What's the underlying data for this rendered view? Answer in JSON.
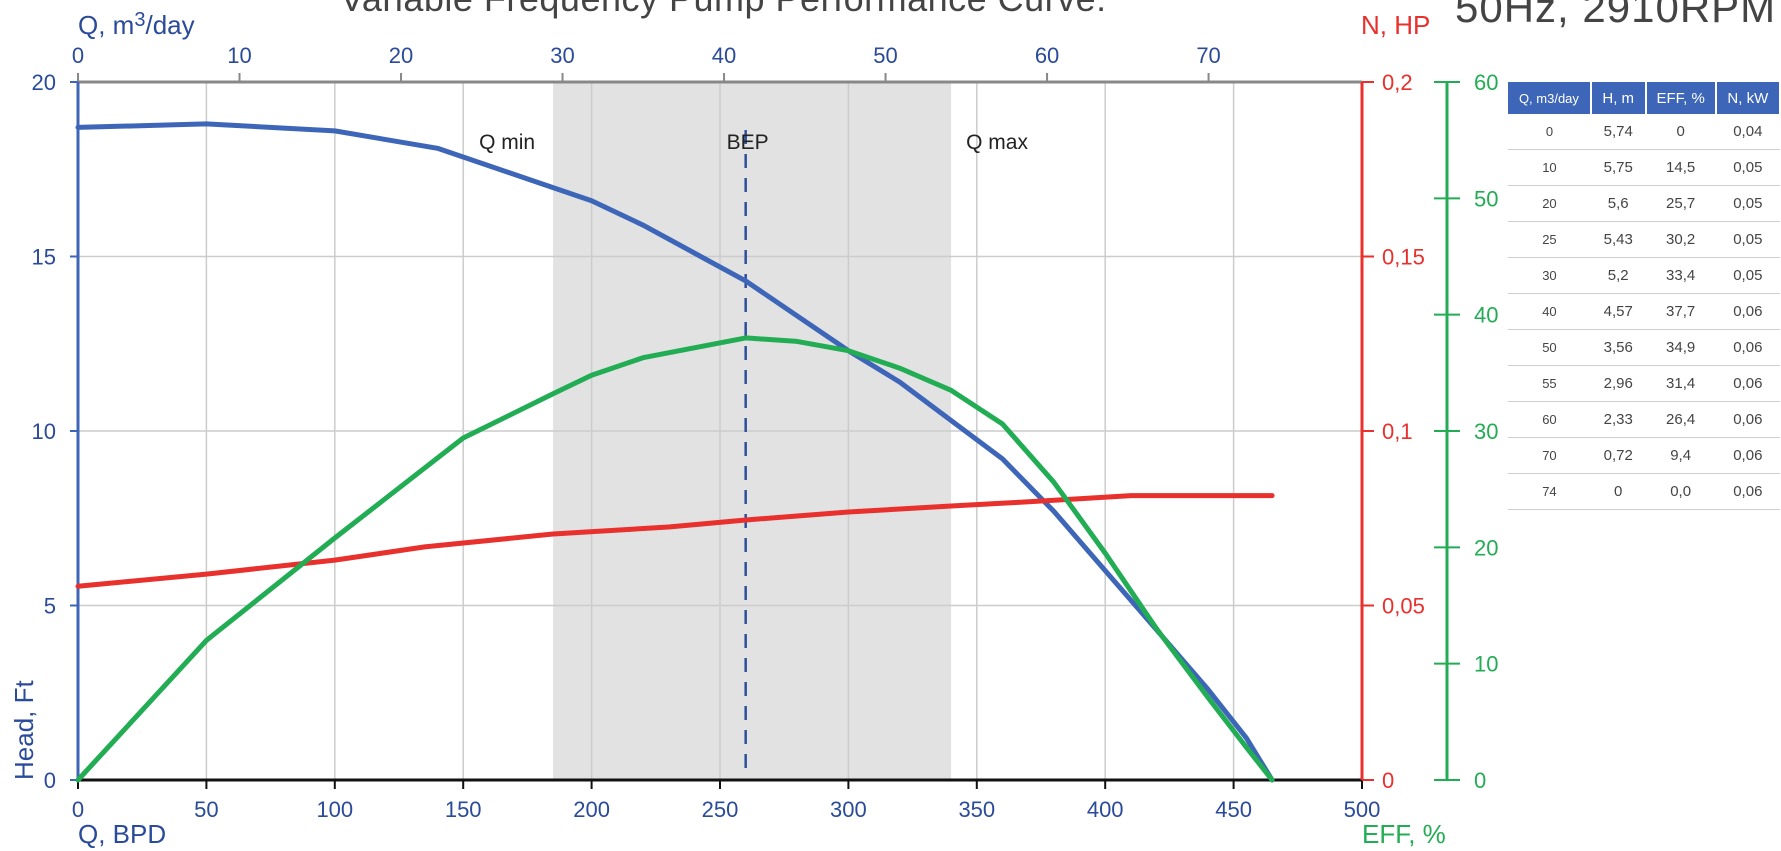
{
  "title": "Variable Frequency Pump Performance Curve:",
  "subtitle": "50Hz, 2910RPM",
  "chart_data": {
    "type": "line",
    "axes": {
      "x_bottom": {
        "label": "Q, BPD",
        "range": [
          0,
          500
        ],
        "ticks": [
          0,
          50,
          100,
          150,
          200,
          250,
          300,
          350,
          400,
          450,
          500
        ]
      },
      "x_top": {
        "label": "Q, m3/day",
        "range": [
          0,
          79.5
        ],
        "ticks": [
          0,
          10,
          20,
          30,
          40,
          50,
          60,
          70
        ]
      },
      "y_left": {
        "label": "Head, Ft",
        "range": [
          0,
          20
        ],
        "ticks": [
          0,
          5,
          10,
          15,
          20
        ]
      },
      "y_right_power": {
        "label": "N, HP",
        "range": [
          0,
          0.2
        ],
        "ticks": [
          "0",
          "0,05",
          "0,1",
          "0,15",
          "0,2"
        ]
      },
      "y_right_eff": {
        "label": "EFF, %",
        "range": [
          0,
          60
        ],
        "ticks": [
          0,
          10,
          20,
          30,
          40,
          50,
          60
        ]
      }
    },
    "operating_range": {
      "q_min": 185,
      "q_max": 340,
      "q_min_label": "Q min",
      "q_max_label": "Q max"
    },
    "bep": {
      "x": 260,
      "label": "BEP"
    },
    "series": [
      {
        "axis": "y_left",
        "color": "#3e66b8",
        "points": [
          [
            0,
            18.7
          ],
          [
            50,
            18.8
          ],
          [
            100,
            18.6
          ],
          [
            140,
            18.1
          ],
          [
            180,
            17.1
          ],
          [
            200,
            16.6
          ],
          [
            220,
            15.9
          ],
          [
            240,
            15.1
          ],
          [
            260,
            14.3
          ],
          [
            280,
            13.3
          ],
          [
            300,
            12.3
          ],
          [
            320,
            11.4
          ],
          [
            340,
            10.3
          ],
          [
            360,
            9.2
          ],
          [
            380,
            7.7
          ],
          [
            400,
            6.0
          ],
          [
            420,
            4.3
          ],
          [
            440,
            2.6
          ],
          [
            455,
            1.2
          ],
          [
            465,
            0
          ]
        ]
      },
      {
        "axis": "y_right_power",
        "color": "#e8302d",
        "points": [
          [
            0,
            0.0555
          ],
          [
            50,
            0.059
          ],
          [
            100,
            0.063
          ],
          [
            135,
            0.0668
          ],
          [
            185,
            0.0705
          ],
          [
            230,
            0.0725
          ],
          [
            260,
            0.0745
          ],
          [
            300,
            0.0768
          ],
          [
            340,
            0.0785
          ],
          [
            365,
            0.0795
          ],
          [
            390,
            0.0806
          ],
          [
            410,
            0.0815
          ],
          [
            465,
            0.0815
          ]
        ]
      },
      {
        "axis": "y_right_eff",
        "color": "#22ad55",
        "points": [
          [
            0,
            0
          ],
          [
            50,
            12
          ],
          [
            100,
            20.8
          ],
          [
            150,
            29.4
          ],
          [
            185,
            33.2
          ],
          [
            200,
            34.8
          ],
          [
            220,
            36.3
          ],
          [
            260,
            38.0
          ],
          [
            280,
            37.7
          ],
          [
            300,
            36.9
          ],
          [
            320,
            35.4
          ],
          [
            340,
            33.5
          ],
          [
            360,
            30.6
          ],
          [
            380,
            25.6
          ],
          [
            400,
            19.5
          ],
          [
            420,
            13.0
          ],
          [
            440,
            7.1
          ],
          [
            455,
            2.8
          ],
          [
            465,
            0
          ]
        ]
      }
    ]
  },
  "table": {
    "headers": [
      "Q, m3/day",
      "H, m",
      "EFF, %",
      "N, kW"
    ],
    "rows": [
      [
        "0",
        "5,74",
        "0",
        "0,04"
      ],
      [
        "10",
        "5,75",
        "14,5",
        "0,05"
      ],
      [
        "20",
        "5,6",
        "25,7",
        "0,05"
      ],
      [
        "25",
        "5,43",
        "30,2",
        "0,05"
      ],
      [
        "30",
        "5,2",
        "33,4",
        "0,05"
      ],
      [
        "40",
        "4,57",
        "37,7",
        "0,06"
      ],
      [
        "50",
        "3,56",
        "34,9",
        "0,06"
      ],
      [
        "55",
        "2,96",
        "31,4",
        "0,06"
      ],
      [
        "60",
        "2,33",
        "26,4",
        "0,06"
      ],
      [
        "70",
        "0,72",
        "9,4",
        "0,06"
      ],
      [
        "74",
        "0",
        "0,0",
        "0,06"
      ]
    ]
  },
  "colors": {
    "head": "#3e66b8",
    "power": "#e8302d",
    "efficiency": "#22ad55",
    "axis_text": "#2a4a9a",
    "range_fill": "#e2e2e2",
    "grid": "#cccccc"
  }
}
